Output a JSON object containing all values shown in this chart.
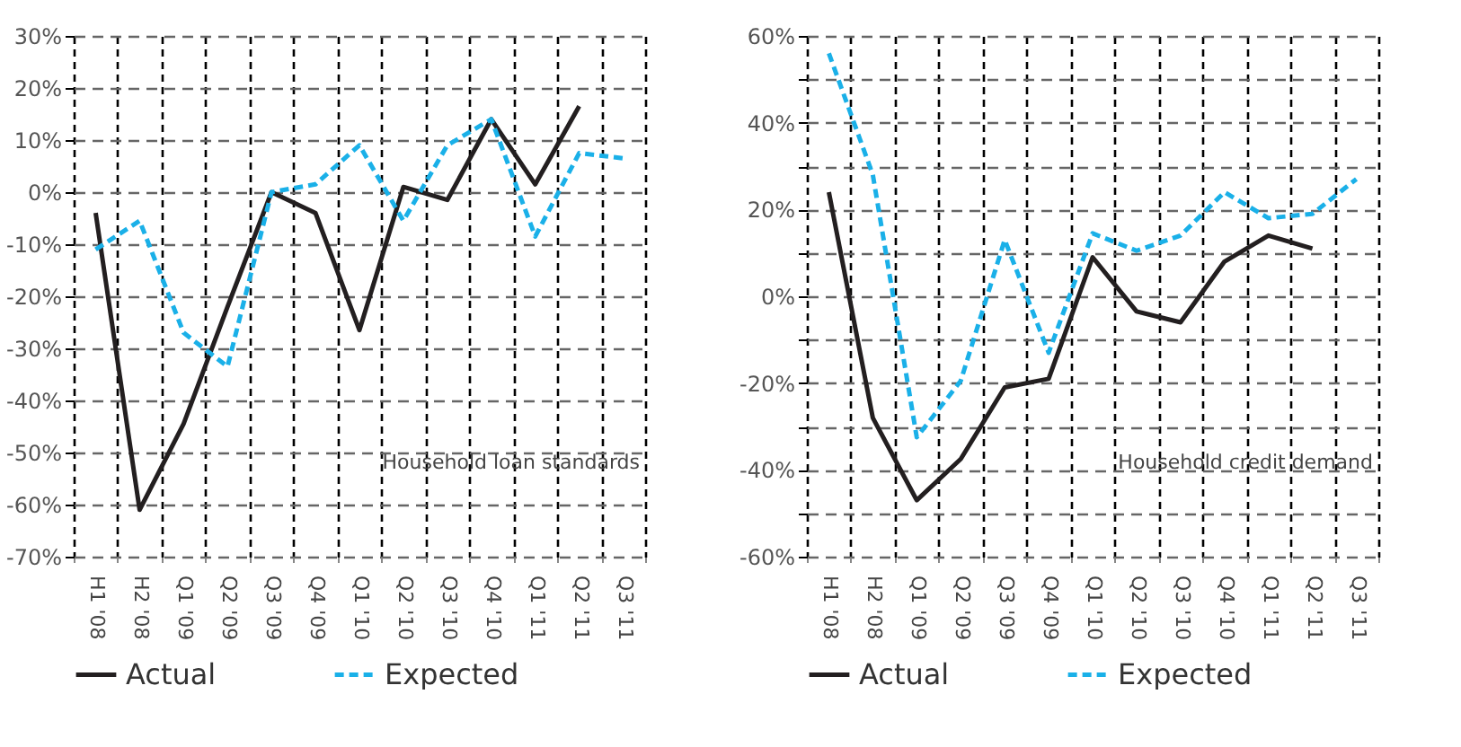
{
  "chart_data": [
    {
      "type": "line",
      "annotations": [
        "Household loan standards"
      ],
      "categories": [
        "H1 '08",
        "H2 '08",
        "Q1 '09",
        "Q2 '09",
        "Q3 '09",
        "Q4 '09",
        "Q1 '10",
        "Q2 '10",
        "Q3 '10",
        "Q4 '10",
        "Q1 '11",
        "Q2 '11",
        "Q3 '11"
      ],
      "series": [
        {
          "name": "Actual",
          "color": "#231f20",
          "line_style": "solid",
          "values": [
            -4,
            -61,
            -44.5,
            -22,
            0,
            -4,
            -26.5,
            1,
            -1.5,
            14,
            1.5,
            16.5,
            null
          ]
        },
        {
          "name": "Expected",
          "color": "#1ab0e8",
          "line_style": "dashed",
          "values": [
            -11,
            -5.5,
            -27,
            -33.5,
            0,
            1.5,
            9,
            -5.5,
            9,
            14,
            -8.5,
            7.5,
            6.5
          ]
        }
      ],
      "ylim": [
        -70,
        30
      ],
      "yticks": [
        {
          "value": -70,
          "label": "-70%"
        },
        {
          "value": -60,
          "label": "-60%"
        },
        {
          "value": -50,
          "label": "-50%"
        },
        {
          "value": -40,
          "label": "-40%"
        },
        {
          "value": -30,
          "label": "-30%"
        },
        {
          "value": -20,
          "label": "-20%"
        },
        {
          "value": -10,
          "label": "-10%"
        },
        {
          "value": 0,
          "label": "0%"
        },
        {
          "value": 10,
          "label": "10%"
        },
        {
          "value": 20,
          "label": "20%"
        },
        {
          "value": 30,
          "label": "30%"
        }
      ],
      "grid": true,
      "legend": "bottom"
    },
    {
      "type": "line",
      "annotations": [
        "Household credit demand"
      ],
      "categories": [
        "H1 '08",
        "H2 '08",
        "Q1 '09",
        "Q2 '09",
        "Q3 '09",
        "Q4 '09",
        "Q1 '10",
        "Q2 '10",
        "Q3 '10",
        "Q4 '10",
        "Q1 '11",
        "Q2 '11",
        "Q3 '11"
      ],
      "series": [
        {
          "name": "Actual",
          "color": "#231f20",
          "line_style": "solid",
          "values": [
            24,
            -28,
            -47,
            -37.5,
            -21,
            -19,
            9,
            -3.5,
            -6,
            8,
            14,
            11,
            null
          ]
        },
        {
          "name": "Expected",
          "color": "#1ab0e8",
          "line_style": "dashed",
          "values": [
            56,
            28,
            -32.5,
            -19.5,
            13,
            -13,
            14.5,
            10.5,
            14,
            24,
            18,
            19,
            27
          ]
        }
      ],
      "ylim": [
        -60,
        60
      ],
      "yticks": [
        {
          "value": -60,
          "label": "-60%"
        },
        {
          "value": -50,
          "label": null
        },
        {
          "value": -40,
          "label": "-40%"
        },
        {
          "value": -30,
          "label": null
        },
        {
          "value": -20,
          "label": "-20%"
        },
        {
          "value": -10,
          "label": null
        },
        {
          "value": 0,
          "label": "0%"
        },
        {
          "value": 10,
          "label": null
        },
        {
          "value": 20,
          "label": "20%"
        },
        {
          "value": 30,
          "label": null
        },
        {
          "value": 40,
          "label": "40%"
        },
        {
          "value": 50,
          "label": null
        },
        {
          "value": 60,
          "label": "60%"
        }
      ],
      "grid": true,
      "legend": "bottom"
    }
  ]
}
